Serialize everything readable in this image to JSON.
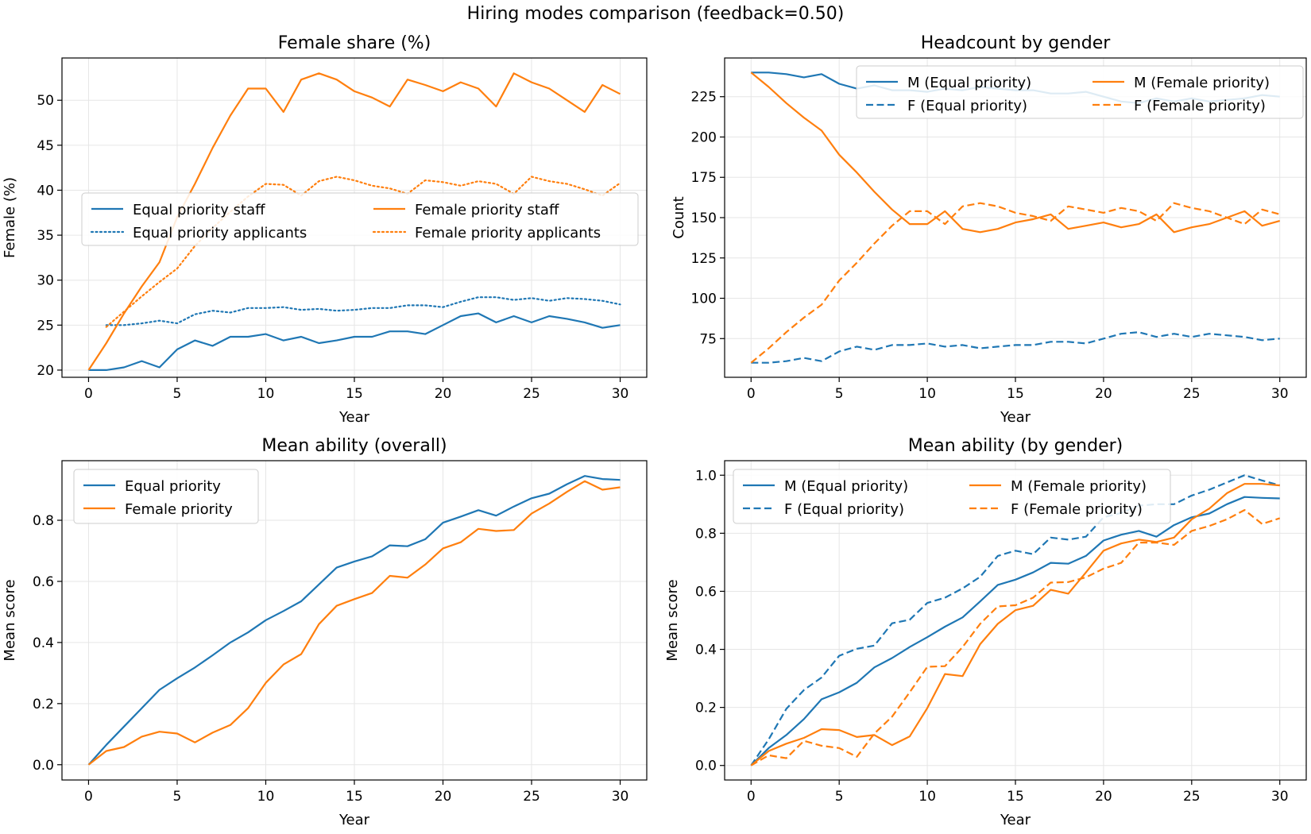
{
  "suptitle": "Hiring modes comparison (feedback=0.50)",
  "colors": {
    "equal": "#1f77b4",
    "female": "#ff7f0e"
  },
  "chart_data": [
    {
      "id": "female_share",
      "type": "line",
      "title": "Female share (%)",
      "xlabel": "Year",
      "ylabel": "Female (%)",
      "xlim": [
        -1.5,
        31.5
      ],
      "ylim": [
        19.2,
        54.7
      ],
      "xticks": [
        0,
        5,
        10,
        15,
        20,
        25,
        30
      ],
      "yticks": [
        20,
        25,
        30,
        35,
        40,
        45,
        50
      ],
      "grid": true,
      "legend": {
        "placement": "center-left",
        "columns": 2
      },
      "series": [
        {
          "name": "Equal priority staff",
          "color": "#1f77b4",
          "style": "solid",
          "x": [
            0,
            1,
            2,
            3,
            4,
            5,
            6,
            7,
            8,
            9,
            10,
            11,
            12,
            13,
            14,
            15,
            16,
            17,
            18,
            19,
            20,
            21,
            22,
            23,
            24,
            25,
            26,
            27,
            28,
            29,
            30
          ],
          "values": [
            20.0,
            20.0,
            20.3,
            21.0,
            20.3,
            22.3,
            23.3,
            22.7,
            23.7,
            23.7,
            24.0,
            23.3,
            23.7,
            23.0,
            23.3,
            23.7,
            23.7,
            24.3,
            24.3,
            24.0,
            25.0,
            26.0,
            26.3,
            25.3,
            26.0,
            25.3,
            26.0,
            25.7,
            25.3,
            24.7,
            25.0
          ]
        },
        {
          "name": "Equal priority applicants",
          "color": "#1f77b4",
          "style": "dotted",
          "x": [
            1,
            2,
            3,
            4,
            5,
            6,
            7,
            8,
            9,
            10,
            11,
            12,
            13,
            14,
            15,
            16,
            17,
            18,
            19,
            20,
            21,
            22,
            23,
            24,
            25,
            26,
            27,
            28,
            29,
            30
          ],
          "values": [
            25.0,
            25.0,
            25.2,
            25.5,
            25.2,
            26.2,
            26.6,
            26.4,
            26.9,
            26.9,
            27.0,
            26.7,
            26.8,
            26.6,
            26.7,
            26.9,
            26.9,
            27.2,
            27.2,
            27.0,
            27.6,
            28.1,
            28.1,
            27.8,
            28.0,
            27.7,
            28.0,
            27.9,
            27.7,
            27.3
          ]
        },
        {
          "name": "Female priority staff",
          "color": "#ff7f0e",
          "style": "solid",
          "x": [
            0,
            1,
            2,
            3,
            4,
            5,
            6,
            7,
            8,
            9,
            10,
            11,
            12,
            13,
            14,
            15,
            16,
            17,
            18,
            19,
            20,
            21,
            22,
            23,
            24,
            25,
            26,
            27,
            28,
            29,
            30
          ],
          "values": [
            20.0,
            23.0,
            26.3,
            29.3,
            32.0,
            37.0,
            40.7,
            44.7,
            48.3,
            51.3,
            51.3,
            48.7,
            52.3,
            53.0,
            52.3,
            51.0,
            50.3,
            49.3,
            52.3,
            51.7,
            51.0,
            52.0,
            51.3,
            49.3,
            53.0,
            52.0,
            51.3,
            50.0,
            48.7,
            51.7,
            50.7
          ]
        },
        {
          "name": "Female priority applicants",
          "color": "#ff7f0e",
          "style": "dotted",
          "x": [
            1,
            2,
            3,
            4,
            5,
            6,
            7,
            8,
            9,
            10,
            11,
            12,
            13,
            14,
            15,
            16,
            17,
            18,
            19,
            20,
            21,
            22,
            23,
            24,
            25,
            26,
            27,
            28,
            29,
            30
          ],
          "values": [
            24.8,
            26.5,
            28.2,
            29.8,
            31.3,
            33.8,
            35.8,
            37.6,
            39.3,
            40.7,
            40.6,
            39.4,
            41.0,
            41.5,
            41.1,
            40.5,
            40.2,
            39.6,
            41.1,
            40.9,
            40.5,
            41.0,
            40.7,
            39.6,
            41.5,
            41.0,
            40.7,
            40.1,
            39.4,
            40.8
          ]
        }
      ]
    },
    {
      "id": "headcount",
      "type": "line",
      "title": "Headcount by gender",
      "xlabel": "Year",
      "ylabel": "Count",
      "xlim": [
        -1.5,
        31.5
      ],
      "ylim": [
        51,
        249
      ],
      "xticks": [
        0,
        5,
        10,
        15,
        20,
        25,
        30
      ],
      "yticks": [
        75,
        100,
        125,
        150,
        175,
        200,
        225
      ],
      "grid": true,
      "legend": {
        "placement": "top-right",
        "columns": 2
      },
      "series": [
        {
          "name": "M (Equal priority)",
          "color": "#1f77b4",
          "style": "solid",
          "x": [
            0,
            1,
            2,
            3,
            4,
            5,
            6,
            7,
            8,
            9,
            10,
            11,
            12,
            13,
            14,
            15,
            16,
            17,
            18,
            19,
            20,
            21,
            22,
            23,
            24,
            25,
            26,
            27,
            28,
            29,
            30
          ],
          "values": [
            240,
            240,
            239,
            237,
            239,
            233,
            230,
            232,
            229,
            229,
            228,
            230,
            229,
            231,
            230,
            229,
            229,
            227,
            227,
            228,
            225,
            222,
            221,
            224,
            222,
            224,
            222,
            223,
            224,
            226,
            225
          ]
        },
        {
          "name": "F (Equal priority)",
          "color": "#1f77b4",
          "style": "dashed",
          "x": [
            0,
            1,
            2,
            3,
            4,
            5,
            6,
            7,
            8,
            9,
            10,
            11,
            12,
            13,
            14,
            15,
            16,
            17,
            18,
            19,
            20,
            21,
            22,
            23,
            24,
            25,
            26,
            27,
            28,
            29,
            30
          ],
          "values": [
            60,
            60,
            61,
            63,
            61,
            67,
            70,
            68,
            71,
            71,
            72,
            70,
            71,
            69,
            70,
            71,
            71,
            73,
            73,
            72,
            75,
            78,
            79,
            76,
            78,
            76,
            78,
            77,
            76,
            74,
            75
          ]
        },
        {
          "name": "M (Female priority)",
          "color": "#ff7f0e",
          "style": "solid",
          "x": [
            0,
            1,
            2,
            3,
            4,
            5,
            6,
            7,
            8,
            9,
            10,
            11,
            12,
            13,
            14,
            15,
            16,
            17,
            18,
            19,
            20,
            21,
            22,
            23,
            24,
            25,
            26,
            27,
            28,
            29,
            30
          ],
          "values": [
            240,
            231,
            221,
            212,
            204,
            189,
            178,
            166,
            155,
            146,
            146,
            154,
            143,
            141,
            143,
            147,
            149,
            152,
            143,
            145,
            147,
            144,
            146,
            152,
            141,
            144,
            146,
            150,
            154,
            145,
            148
          ]
        },
        {
          "name": "F (Female priority)",
          "color": "#ff7f0e",
          "style": "dashed",
          "x": [
            0,
            1,
            2,
            3,
            4,
            5,
            6,
            7,
            8,
            9,
            10,
            11,
            12,
            13,
            14,
            15,
            16,
            17,
            18,
            19,
            20,
            21,
            22,
            23,
            24,
            25,
            26,
            27,
            28,
            29,
            30
          ],
          "values": [
            60,
            69,
            79,
            88,
            96,
            111,
            122,
            134,
            145,
            154,
            154,
            146,
            157,
            159,
            157,
            153,
            151,
            148,
            157,
            155,
            153,
            156,
            154,
            148,
            159,
            156,
            154,
            150,
            146,
            155,
            152
          ]
        }
      ]
    },
    {
      "id": "ability_overall",
      "type": "line",
      "title": "Mean ability (overall)",
      "xlabel": "Year",
      "ylabel": "Mean score",
      "xlim": [
        -1.5,
        31.5
      ],
      "ylim": [
        -0.05,
        0.995
      ],
      "xticks": [
        0,
        5,
        10,
        15,
        20,
        25,
        30
      ],
      "yticks": [
        0.0,
        0.2,
        0.4,
        0.6,
        0.8
      ],
      "ytick_labels": [
        "0.0",
        "0.2",
        "0.4",
        "0.6",
        "0.8"
      ],
      "grid": true,
      "legend": {
        "placement": "top-left",
        "columns": 1
      },
      "series": [
        {
          "name": "Equal priority",
          "color": "#1f77b4",
          "style": "solid",
          "x": [
            0,
            1,
            2,
            3,
            4,
            5,
            6,
            7,
            8,
            9,
            10,
            11,
            12,
            13,
            14,
            15,
            16,
            17,
            18,
            19,
            20,
            21,
            22,
            23,
            24,
            25,
            26,
            27,
            28,
            29,
            30
          ],
          "values": [
            0.0,
            0.065,
            0.125,
            0.185,
            0.245,
            0.283,
            0.318,
            0.358,
            0.4,
            0.433,
            0.473,
            0.503,
            0.535,
            0.59,
            0.645,
            0.665,
            0.682,
            0.718,
            0.715,
            0.738,
            0.792,
            0.812,
            0.833,
            0.815,
            0.845,
            0.872,
            0.887,
            0.918,
            0.945,
            0.935,
            0.932
          ]
        },
        {
          "name": "Female priority",
          "color": "#ff7f0e",
          "style": "solid",
          "x": [
            0,
            1,
            2,
            3,
            4,
            5,
            6,
            7,
            8,
            9,
            10,
            11,
            12,
            13,
            14,
            15,
            16,
            17,
            18,
            19,
            20,
            21,
            22,
            23,
            24,
            25,
            26,
            27,
            28,
            29,
            30
          ],
          "values": [
            0.0,
            0.045,
            0.058,
            0.092,
            0.108,
            0.102,
            0.073,
            0.105,
            0.13,
            0.185,
            0.268,
            0.328,
            0.362,
            0.46,
            0.52,
            0.542,
            0.562,
            0.618,
            0.612,
            0.655,
            0.708,
            0.728,
            0.772,
            0.765,
            0.768,
            0.822,
            0.855,
            0.893,
            0.928,
            0.9,
            0.908
          ]
        }
      ]
    },
    {
      "id": "ability_gender",
      "type": "line",
      "title": "Mean ability (by gender)",
      "xlabel": "Year",
      "ylabel": "Mean score",
      "xlim": [
        -1.5,
        31.5
      ],
      "ylim": [
        -0.05,
        1.05
      ],
      "xticks": [
        0,
        5,
        10,
        15,
        20,
        25,
        30
      ],
      "yticks": [
        0.0,
        0.2,
        0.4,
        0.6,
        0.8,
        1.0
      ],
      "ytick_labels": [
        "0.0",
        "0.2",
        "0.4",
        "0.6",
        "0.8",
        "1.0"
      ],
      "grid": true,
      "legend": {
        "placement": "top-left",
        "columns": 2
      },
      "series": [
        {
          "name": "M (Equal priority)",
          "color": "#1f77b4",
          "style": "solid",
          "x": [
            0,
            1,
            2,
            3,
            4,
            5,
            6,
            7,
            8,
            9,
            10,
            11,
            12,
            13,
            14,
            15,
            16,
            17,
            18,
            19,
            20,
            21,
            22,
            23,
            24,
            25,
            26,
            27,
            28,
            29,
            30
          ],
          "values": [
            0.0,
            0.06,
            0.105,
            0.16,
            0.228,
            0.252,
            0.285,
            0.338,
            0.37,
            0.408,
            0.442,
            0.478,
            0.51,
            0.565,
            0.622,
            0.64,
            0.665,
            0.698,
            0.695,
            0.722,
            0.775,
            0.795,
            0.808,
            0.788,
            0.828,
            0.855,
            0.868,
            0.9,
            0.925,
            0.922,
            0.92
          ]
        },
        {
          "name": "F (Equal priority)",
          "color": "#1f77b4",
          "style": "dashed",
          "x": [
            0,
            1,
            2,
            3,
            4,
            5,
            6,
            7,
            8,
            9,
            10,
            11,
            12,
            13,
            14,
            15,
            16,
            17,
            18,
            19,
            20,
            21,
            22,
            23,
            24,
            25,
            26,
            27,
            28,
            29,
            30
          ],
          "values": [
            0.0,
            0.09,
            0.195,
            0.26,
            0.303,
            0.378,
            0.402,
            0.413,
            0.49,
            0.502,
            0.56,
            0.578,
            0.61,
            0.65,
            0.722,
            0.74,
            0.728,
            0.785,
            0.778,
            0.788,
            0.855,
            0.87,
            0.895,
            0.9,
            0.9,
            0.93,
            0.95,
            0.975,
            1.0,
            0.982,
            0.965
          ]
        },
        {
          "name": "M (Female priority)",
          "color": "#ff7f0e",
          "style": "solid",
          "x": [
            0,
            1,
            2,
            3,
            4,
            5,
            6,
            7,
            8,
            9,
            10,
            11,
            12,
            13,
            14,
            15,
            16,
            17,
            18,
            19,
            20,
            21,
            22,
            23,
            24,
            25,
            26,
            27,
            28,
            29,
            30
          ],
          "values": [
            0.0,
            0.05,
            0.075,
            0.095,
            0.125,
            0.122,
            0.098,
            0.105,
            0.07,
            0.1,
            0.198,
            0.315,
            0.308,
            0.418,
            0.488,
            0.535,
            0.55,
            0.605,
            0.592,
            0.665,
            0.74,
            0.765,
            0.778,
            0.77,
            0.785,
            0.848,
            0.885,
            0.938,
            0.97,
            0.97,
            0.965
          ]
        },
        {
          "name": "F (Female priority)",
          "color": "#ff7f0e",
          "style": "dashed",
          "x": [
            0,
            1,
            2,
            3,
            4,
            5,
            6,
            7,
            8,
            9,
            10,
            11,
            12,
            13,
            14,
            15,
            16,
            17,
            18,
            19,
            20,
            21,
            22,
            23,
            24,
            25,
            26,
            27,
            28,
            29,
            30
          ],
          "values": [
            0.0,
            0.035,
            0.025,
            0.085,
            0.068,
            0.06,
            0.03,
            0.11,
            0.168,
            0.252,
            0.34,
            0.342,
            0.408,
            0.488,
            0.548,
            0.552,
            0.578,
            0.63,
            0.632,
            0.648,
            0.678,
            0.698,
            0.768,
            0.768,
            0.76,
            0.808,
            0.825,
            0.848,
            0.88,
            0.832,
            0.852
          ]
        }
      ]
    }
  ]
}
